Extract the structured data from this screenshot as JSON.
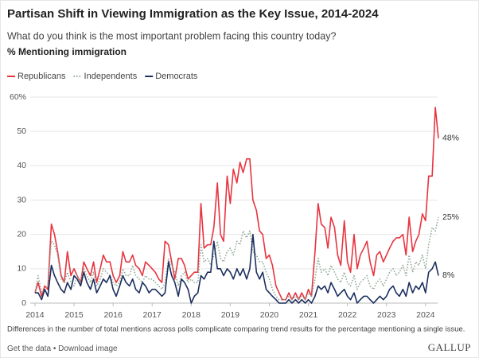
{
  "chart_data": {
    "type": "line",
    "title": "Partisan Shift in Viewing Immigration as the Key Issue, 2014-2024",
    "subtitle": "What do you think is the most important problem facing this country today?",
    "y_label": "% Mentioning immigration",
    "footnote": "Differences in the number of total mentions across polls complicate comparing trend results for the percentage mentioning a single issue.",
    "links": [
      "Get the data",
      "Download image"
    ],
    "brand": "GALLUP",
    "grid": true,
    "legend": "top-left",
    "xlim": [
      2013.95,
      2024.35
    ],
    "xticks": [
      2014,
      2015,
      2016,
      2017,
      2018,
      2019,
      2020,
      2021,
      2022,
      2023,
      2024
    ],
    "ylim": [
      0,
      60
    ],
    "yticks": [
      0,
      10,
      20,
      30,
      40,
      50,
      {
        "value": 60,
        "label": "60%"
      }
    ],
    "x": [
      2014,
      2014.08,
      2014.17,
      2014.25,
      2014.33,
      2014.42,
      2014.5,
      2014.58,
      2014.67,
      2014.75,
      2014.83,
      2014.92,
      2015,
      2015.08,
      2015.17,
      2015.25,
      2015.33,
      2015.42,
      2015.5,
      2015.58,
      2015.67,
      2015.75,
      2015.83,
      2015.92,
      2016,
      2016.08,
      2016.17,
      2016.25,
      2016.33,
      2016.42,
      2016.5,
      2016.58,
      2016.67,
      2016.75,
      2016.83,
      2016.92,
      2017,
      2017.08,
      2017.17,
      2017.25,
      2017.33,
      2017.42,
      2017.5,
      2017.58,
      2017.67,
      2017.75,
      2017.83,
      2017.92,
      2018,
      2018.08,
      2018.17,
      2018.25,
      2018.33,
      2018.42,
      2018.5,
      2018.58,
      2018.67,
      2018.75,
      2018.83,
      2018.92,
      2019,
      2019.08,
      2019.17,
      2019.25,
      2019.33,
      2019.42,
      2019.5,
      2019.58,
      2019.67,
      2019.75,
      2019.83,
      2019.92,
      2020,
      2020.08,
      2020.17,
      2020.25,
      2020.33,
      2020.42,
      2020.5,
      2020.58,
      2020.67,
      2020.75,
      2020.83,
      2020.92,
      2021,
      2021.08,
      2021.17,
      2021.25,
      2021.33,
      2021.42,
      2021.5,
      2021.58,
      2021.67,
      2021.75,
      2021.83,
      2021.92,
      2022,
      2022.08,
      2022.17,
      2022.25,
      2022.33,
      2022.42,
      2022.5,
      2022.58,
      2022.67,
      2022.75,
      2022.83,
      2022.92,
      2023,
      2023.08,
      2023.17,
      2023.25,
      2023.33,
      2023.42,
      2023.5,
      2023.58,
      2023.67,
      2023.75,
      2023.83,
      2023.92,
      2024,
      2024.08,
      2024.17,
      2024.25,
      2024.33
    ],
    "series": [
      {
        "name": "Republicans",
        "color": "#e8343f",
        "style": "solid",
        "end_label": "48%",
        "values": [
          3,
          6,
          2,
          5,
          4,
          23,
          20,
          15,
          8,
          6,
          15,
          8,
          10,
          8,
          6,
          12,
          10,
          8,
          12,
          6,
          10,
          14,
          12,
          12,
          8,
          6,
          8,
          15,
          12,
          12,
          14,
          11,
          10,
          8,
          12,
          11,
          10,
          9,
          7,
          6,
          18,
          17,
          12,
          7,
          13,
          13,
          11,
          7,
          8,
          9,
          9,
          29,
          16,
          17,
          17,
          22,
          35,
          20,
          18,
          37,
          29,
          39,
          35,
          41,
          38,
          42,
          42,
          30,
          27,
          21,
          20,
          13,
          14,
          11,
          5,
          3,
          1,
          1,
          3,
          1,
          3,
          1,
          3,
          1,
          4,
          2,
          15,
          29,
          23,
          22,
          16,
          25,
          22,
          14,
          11,
          24,
          12,
          9,
          20,
          10,
          14,
          16,
          18,
          12,
          8,
          14,
          15,
          12,
          14,
          16,
          18,
          19,
          19,
          20,
          14,
          25,
          15,
          18,
          20,
          26,
          24,
          37,
          37,
          57,
          48
        ]
      },
      {
        "name": "Independents",
        "color": "#8fa897",
        "style": "dotted",
        "end_label": "25%",
        "values": [
          3,
          8,
          3,
          4,
          5,
          18,
          17,
          14,
          7,
          6,
          9,
          6,
          5,
          8,
          6,
          10,
          8,
          6,
          9,
          5,
          7,
          10,
          9,
          8,
          6,
          5,
          6,
          10,
          8,
          8,
          11,
          8,
          7,
          6,
          8,
          7,
          7,
          6,
          5,
          4,
          6,
          13,
          11,
          9,
          5,
          8,
          9,
          6,
          7,
          6,
          6,
          17,
          12,
          13,
          11,
          14,
          18,
          13,
          12,
          15,
          16,
          14,
          18,
          17,
          21,
          19,
          21,
          15,
          14,
          12,
          12,
          9,
          7,
          4,
          2,
          1,
          1,
          1,
          2,
          1,
          2,
          1,
          2,
          1,
          3,
          2,
          7,
          13,
          9,
          10,
          8,
          11,
          9,
          7,
          6,
          9,
          6,
          5,
          8,
          4,
          6,
          7,
          8,
          5,
          4,
          6,
          7,
          5,
          7,
          9,
          10,
          8,
          9,
          11,
          8,
          14,
          9,
          12,
          11,
          14,
          10,
          17,
          22,
          21,
          25
        ]
      },
      {
        "name": "Democrats",
        "color": "#1b2f5e",
        "style": "solid",
        "end_label": "8%",
        "values": [
          3,
          3,
          1,
          4,
          2,
          11,
          8,
          6,
          4,
          3,
          6,
          4,
          8,
          7,
          5,
          9,
          6,
          4,
          7,
          3,
          5,
          7,
          6,
          8,
          4,
          2,
          5,
          8,
          6,
          5,
          7,
          4,
          3,
          6,
          5,
          3,
          4,
          4,
          3,
          2,
          3,
          12,
          8,
          6,
          2,
          7,
          6,
          4,
          0,
          2,
          3,
          8,
          7,
          9,
          9,
          18,
          10,
          10,
          8,
          10,
          9,
          7,
          10,
          8,
          10,
          7,
          10,
          20,
          9,
          7,
          9,
          4,
          3,
          2,
          1,
          0,
          0,
          0,
          1,
          0,
          1,
          0,
          1,
          0,
          1,
          0,
          2,
          5,
          4,
          5,
          3,
          6,
          4,
          2,
          3,
          4,
          2,
          1,
          3,
          0,
          1,
          2,
          2,
          1,
          0,
          1,
          2,
          1,
          2,
          4,
          5,
          3,
          2,
          4,
          2,
          6,
          3,
          5,
          4,
          6,
          3,
          9,
          10,
          12,
          8
        ]
      }
    ]
  }
}
